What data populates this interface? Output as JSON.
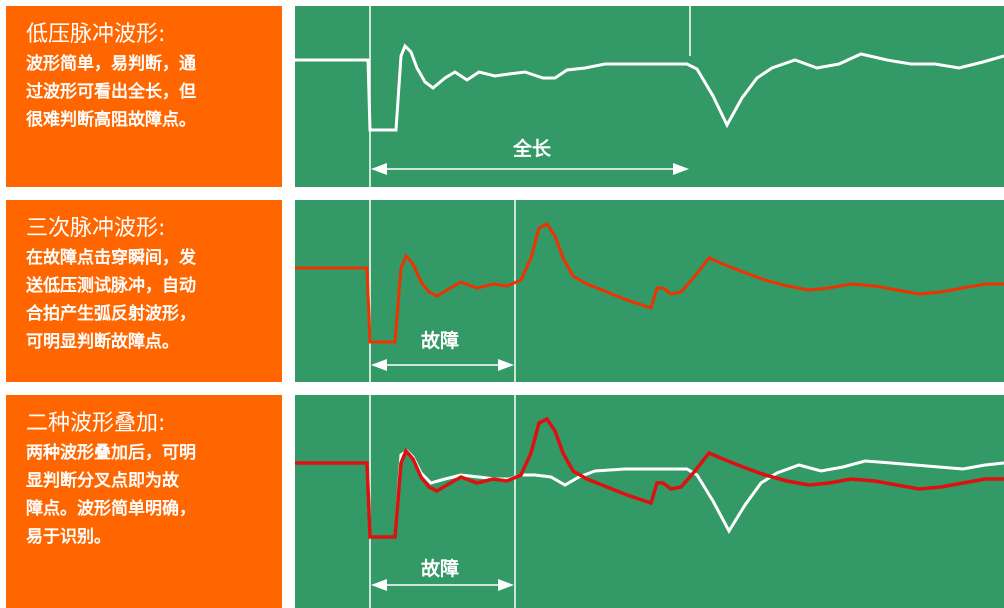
{
  "colors": {
    "label_bg": "#ff6600",
    "panel_bg": "#339966",
    "wave_low": "#ffffff",
    "wave_triple": "#ee3300",
    "wave_overlay_red": "#dd1111",
    "label_text": "#ffffff"
  },
  "rows": [
    {
      "title": "低压脉冲波形:",
      "lines": [
        "波形简单，易判断，通",
        "过波形可看出全长，但",
        "很难判断高阻故障点。"
      ],
      "annotation": "全长"
    },
    {
      "title": "三次脉冲波形:",
      "lines": [
        "在故障点击穿瞬间，发",
        "送低压测试脉冲，自动",
        "合拍产生弧反射波形，",
        "可明显判断故障点。"
      ],
      "annotation": "故障"
    },
    {
      "title": "二种波形叠加:",
      "lines": [
        "两种波形叠加后，可明",
        "显判断分叉点即为故",
        "障点。波形简单明确，",
        "易于识别。"
      ],
      "annotation": "故障"
    }
  ]
}
